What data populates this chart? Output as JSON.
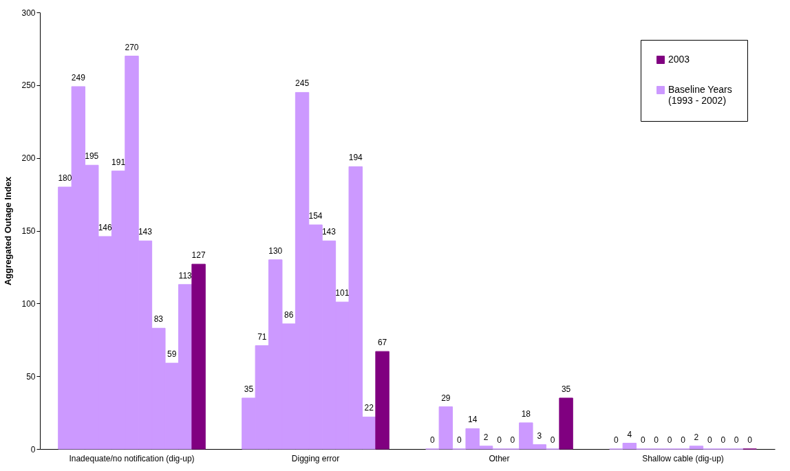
{
  "chart_data": {
    "type": "bar",
    "ylabel": "Aggregated Outage Index",
    "categories": [
      "Inadequate/no notification (dig-up)",
      "Digging error",
      "Other",
      "Shallow cable (dig-up)"
    ],
    "series": [
      {
        "name": "Baseline Years\n(1993 - 2002)",
        "color": "#cc99ff",
        "values": [
          180,
          35,
          0,
          0
        ]
      },
      {
        "color": "#cc99ff",
        "values": [
          249,
          71,
          29,
          4
        ]
      },
      {
        "color": "#cc99ff",
        "values": [
          195,
          130,
          0,
          0
        ]
      },
      {
        "color": "#cc99ff",
        "values": [
          146,
          86,
          14,
          0
        ]
      },
      {
        "color": "#cc99ff",
        "values": [
          191,
          245,
          2,
          0
        ]
      },
      {
        "color": "#cc99ff",
        "values": [
          270,
          154,
          0,
          0
        ]
      },
      {
        "color": "#cc99ff",
        "values": [
          143,
          143,
          0,
          2
        ]
      },
      {
        "color": "#cc99ff",
        "values": [
          83,
          101,
          18,
          0
        ]
      },
      {
        "color": "#cc99ff",
        "values": [
          59,
          194,
          3,
          0
        ]
      },
      {
        "color": "#cc99ff",
        "values": [
          113,
          22,
          0,
          0
        ]
      },
      {
        "name": "2003",
        "color": "#800080",
        "values": [
          127,
          67,
          35,
          0
        ]
      }
    ],
    "ylim": [
      0,
      300
    ],
    "yticks": [
      0,
      50,
      100,
      150,
      200,
      250,
      300
    ],
    "data_labels": true,
    "legend": "top right",
    "grid": false
  }
}
